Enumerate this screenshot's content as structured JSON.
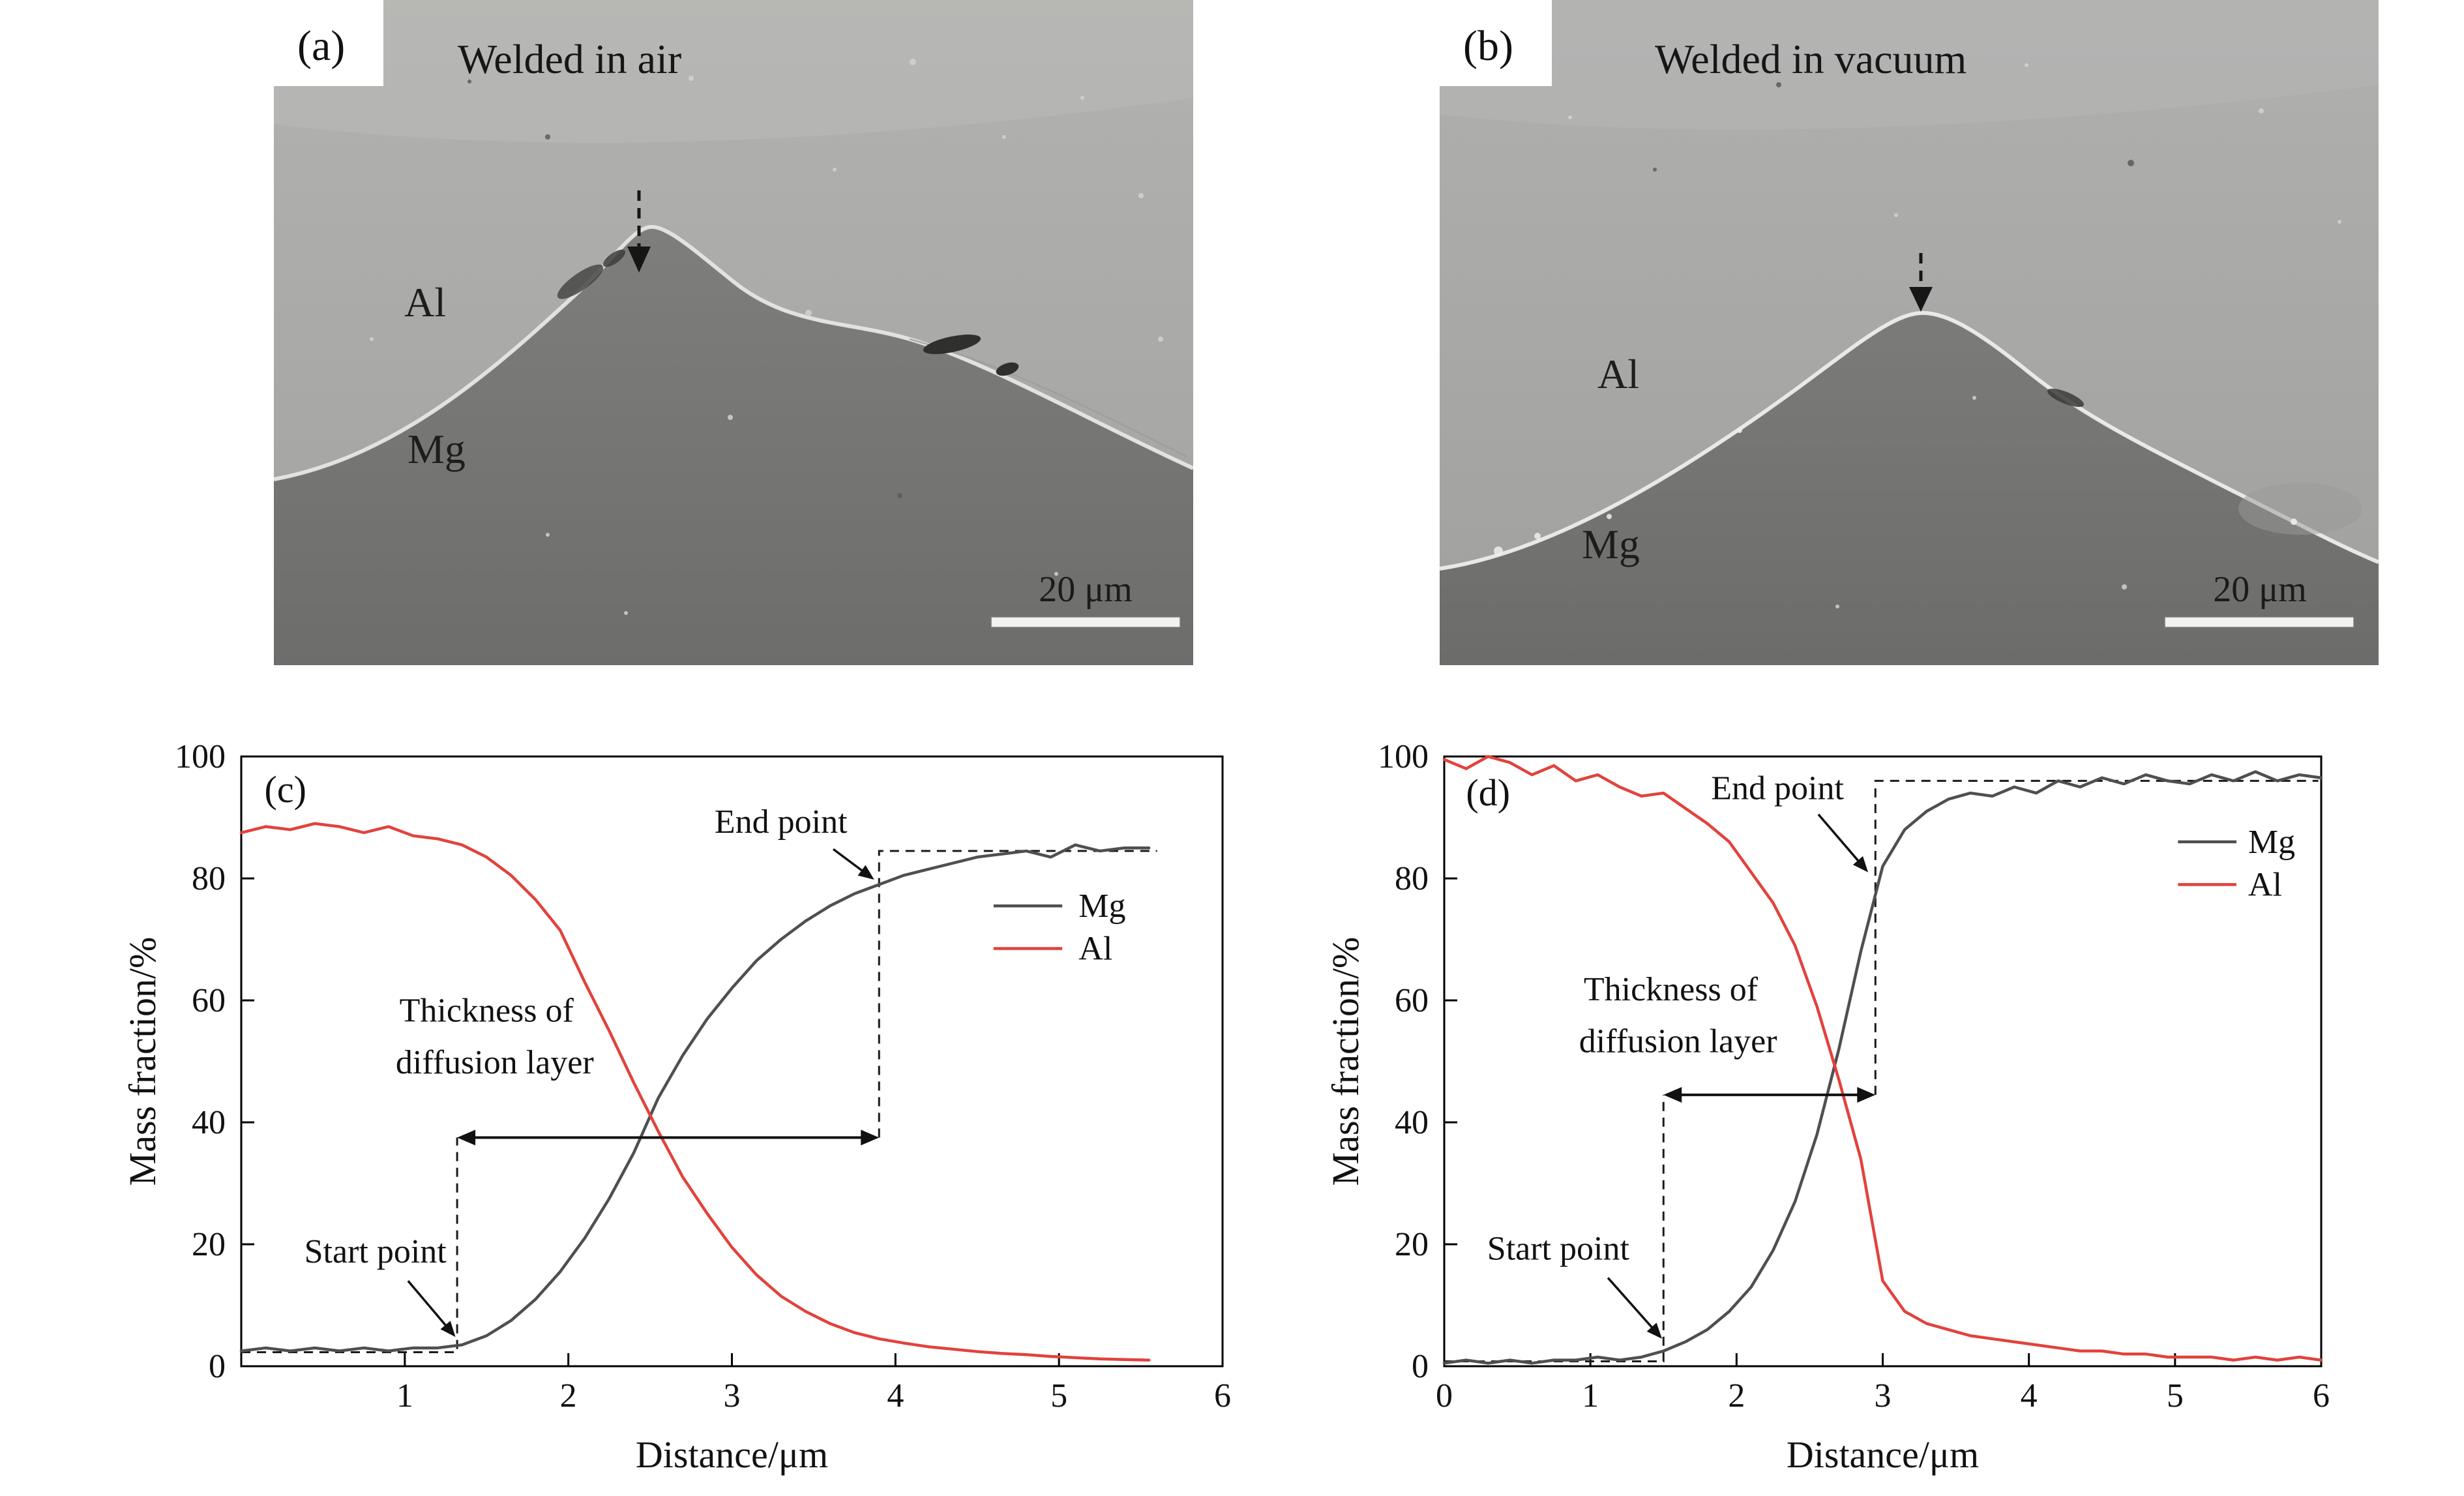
{
  "sem_panels": [
    {
      "id": "a",
      "label": "(a)",
      "caption": "Welded in air",
      "al_label": "Al",
      "mg_label": "Mg",
      "scale_bar_label": "20 μm"
    },
    {
      "id": "b",
      "label": "(b)",
      "caption": "Welded in vacuum",
      "al_label": "Al",
      "mg_label": "Mg",
      "scale_bar_label": "20 μm"
    }
  ],
  "chart_data": [
    {
      "type": "line",
      "panel_label": "(c)",
      "xlabel": "Distance/μm",
      "ylabel": "Mass fraction/%",
      "xlim": [
        0,
        6
      ],
      "ylim": [
        0,
        100
      ],
      "xticks": [
        1,
        2,
        3,
        4,
        5,
        6
      ],
      "xtick_labels": [
        "1",
        "2",
        "3",
        "4",
        "5",
        "6"
      ],
      "yticks": [
        0,
        20,
        40,
        60,
        80,
        100
      ],
      "x": [
        0,
        0.15,
        0.3,
        0.45,
        0.6,
        0.75,
        0.9,
        1.05,
        1.2,
        1.35,
        1.5,
        1.65,
        1.8,
        1.95,
        2.1,
        2.25,
        2.4,
        2.55,
        2.7,
        2.85,
        3,
        3.15,
        3.3,
        3.45,
        3.6,
        3.75,
        3.9,
        4.05,
        4.2,
        4.35,
        4.5,
        4.65,
        4.8,
        4.95,
        5.1,
        5.25,
        5.4,
        5.55
      ],
      "series": [
        {
          "name": "Mg",
          "color": "#4f4f4f",
          "values": [
            2.5,
            3,
            2.5,
            3,
            2.5,
            3,
            2.5,
            3,
            3,
            3.5,
            5,
            7.5,
            11,
            15.5,
            21,
            27.5,
            35,
            44,
            51,
            57,
            62,
            66.5,
            70,
            73,
            75.5,
            77.5,
            79,
            80.5,
            81.5,
            82.5,
            83.5,
            84,
            84.5,
            83.5,
            85.5,
            84.5,
            85,
            85
          ]
        },
        {
          "name": "Al",
          "color": "#e2423c",
          "values": [
            87.5,
            88.5,
            88,
            89,
            88.5,
            87.5,
            88.5,
            87,
            86.5,
            85.5,
            83.5,
            80.5,
            76.5,
            71.5,
            63,
            55,
            46.5,
            38.5,
            31,
            25,
            19.5,
            15,
            11.5,
            9,
            7,
            5.5,
            4.5,
            3.8,
            3.2,
            2.8,
            2.4,
            2.1,
            1.9,
            1.6,
            1.4,
            1.2,
            1.1,
            1
          ]
        }
      ],
      "legend": {
        "entries": [
          "Mg",
          "Al"
        ],
        "y": [
          75.5,
          68.5
        ],
        "line_x1": 4.6,
        "line_x2": 5.02,
        "text_x": 5.12
      },
      "annotations": {
        "texts": [
          {
            "label": "(c)",
            "x": 0.27,
            "y": 92.5,
            "size": 58
          },
          {
            "label": "End point",
            "x": 3.3,
            "y": 87.5
          },
          {
            "label": "Start point",
            "x": 0.82,
            "y": 17
          },
          {
            "label": "Thickness of",
            "x": 1.5,
            "y": 56.5
          },
          {
            "label": "diffusion layer",
            "x": 1.55,
            "y": 48
          }
        ],
        "arrows": [
          {
            "from": [
              3.62,
              84.8
            ],
            "to": [
              3.87,
              79.8
            ]
          },
          {
            "from": [
              1.02,
              14.0
            ],
            "to": [
              1.31,
              4.8
            ]
          }
        ],
        "double_arrow": {
          "y": 37.5,
          "x1": 1.32,
          "x2": 3.9
        },
        "dashed_lines": [
          {
            "points": [
              [
                0,
                2.3
              ],
              [
                1.32,
                2.3
              ],
              [
                1.32,
                37.5
              ]
            ]
          },
          {
            "points": [
              [
                3.9,
                37.5
              ],
              [
                3.9,
                84.5
              ],
              [
                5.6,
                84.5
              ]
            ]
          }
        ]
      }
    },
    {
      "type": "line",
      "panel_label": "(d)",
      "xlabel": "Distance/μm",
      "ylabel": "Mass fraction/%",
      "xlim": [
        0,
        6
      ],
      "ylim": [
        0,
        100
      ],
      "xticks": [
        0,
        1,
        2,
        3,
        4,
        5,
        6
      ],
      "xtick_labels": [
        "0",
        "1",
        "2",
        "3",
        "4",
        "5",
        "6"
      ],
      "yticks": [
        0,
        20,
        40,
        60,
        80,
        100
      ],
      "x": [
        0,
        0.15,
        0.3,
        0.45,
        0.6,
        0.75,
        0.9,
        1.05,
        1.2,
        1.35,
        1.5,
        1.65,
        1.8,
        1.95,
        2.1,
        2.25,
        2.4,
        2.55,
        2.7,
        2.85,
        3,
        3.15,
        3.3,
        3.45,
        3.6,
        3.75,
        3.9,
        4.05,
        4.2,
        4.35,
        4.5,
        4.65,
        4.8,
        4.95,
        5.1,
        5.25,
        5.4,
        5.55,
        5.7,
        5.85,
        6
      ],
      "series": [
        {
          "name": "Mg",
          "color": "#4f4f4f",
          "values": [
            0.5,
            1,
            0.5,
            1,
            0.5,
            1,
            1,
            1.5,
            1,
            1.5,
            2.5,
            4,
            6,
            9,
            13,
            19,
            27,
            38,
            52,
            68,
            82,
            88,
            91,
            93,
            94,
            93.5,
            95,
            94,
            96,
            95,
            96.5,
            95.5,
            97,
            96,
            95.5,
            97,
            96,
            97.5,
            96,
            97,
            96.5
          ]
        },
        {
          "name": "Al",
          "color": "#e2423c",
          "values": [
            99.5,
            98,
            100,
            99,
            97,
            98.5,
            96,
            97,
            95,
            93.5,
            94,
            91.5,
            89,
            86,
            81,
            76,
            69,
            59,
            47,
            34,
            14,
            9,
            7,
            6,
            5,
            4.5,
            4,
            3.5,
            3,
            2.5,
            2.5,
            2,
            2,
            1.5,
            1.5,
            1.5,
            1,
            1.5,
            1,
            1.5,
            1
          ]
        }
      ],
      "legend": {
        "entries": [
          "Mg",
          "Al"
        ],
        "y": [
          86,
          79
        ],
        "line_x1": 5.02,
        "line_x2": 5.42,
        "text_x": 5.5
      },
      "annotations": {
        "texts": [
          {
            "label": "(d)",
            "x": 0.3,
            "y": 92,
            "size": 58
          },
          {
            "label": "End point",
            "x": 2.28,
            "y": 93
          },
          {
            "label": "Start point",
            "x": 0.78,
            "y": 17.5
          },
          {
            "label": "Thickness of",
            "x": 1.55,
            "y": 60
          },
          {
            "label": "diffusion layer",
            "x": 1.6,
            "y": 51.5
          }
        ],
        "arrows": [
          {
            "from": [
              2.56,
              90.5
            ],
            "to": [
              2.9,
              81
            ]
          },
          {
            "from": [
              1.12,
              14.5
            ],
            "to": [
              1.49,
              4.5
            ]
          }
        ],
        "double_arrow": {
          "y": 44.5,
          "x1": 1.5,
          "x2": 2.95
        },
        "dashed_lines": [
          {
            "points": [
              [
                0,
                0.8
              ],
              [
                1.5,
                0.8
              ],
              [
                1.5,
                44.5
              ]
            ]
          },
          {
            "points": [
              [
                2.95,
                44.5
              ],
              [
                2.95,
                96
              ],
              [
                5.98,
                96
              ]
            ]
          }
        ]
      }
    }
  ]
}
